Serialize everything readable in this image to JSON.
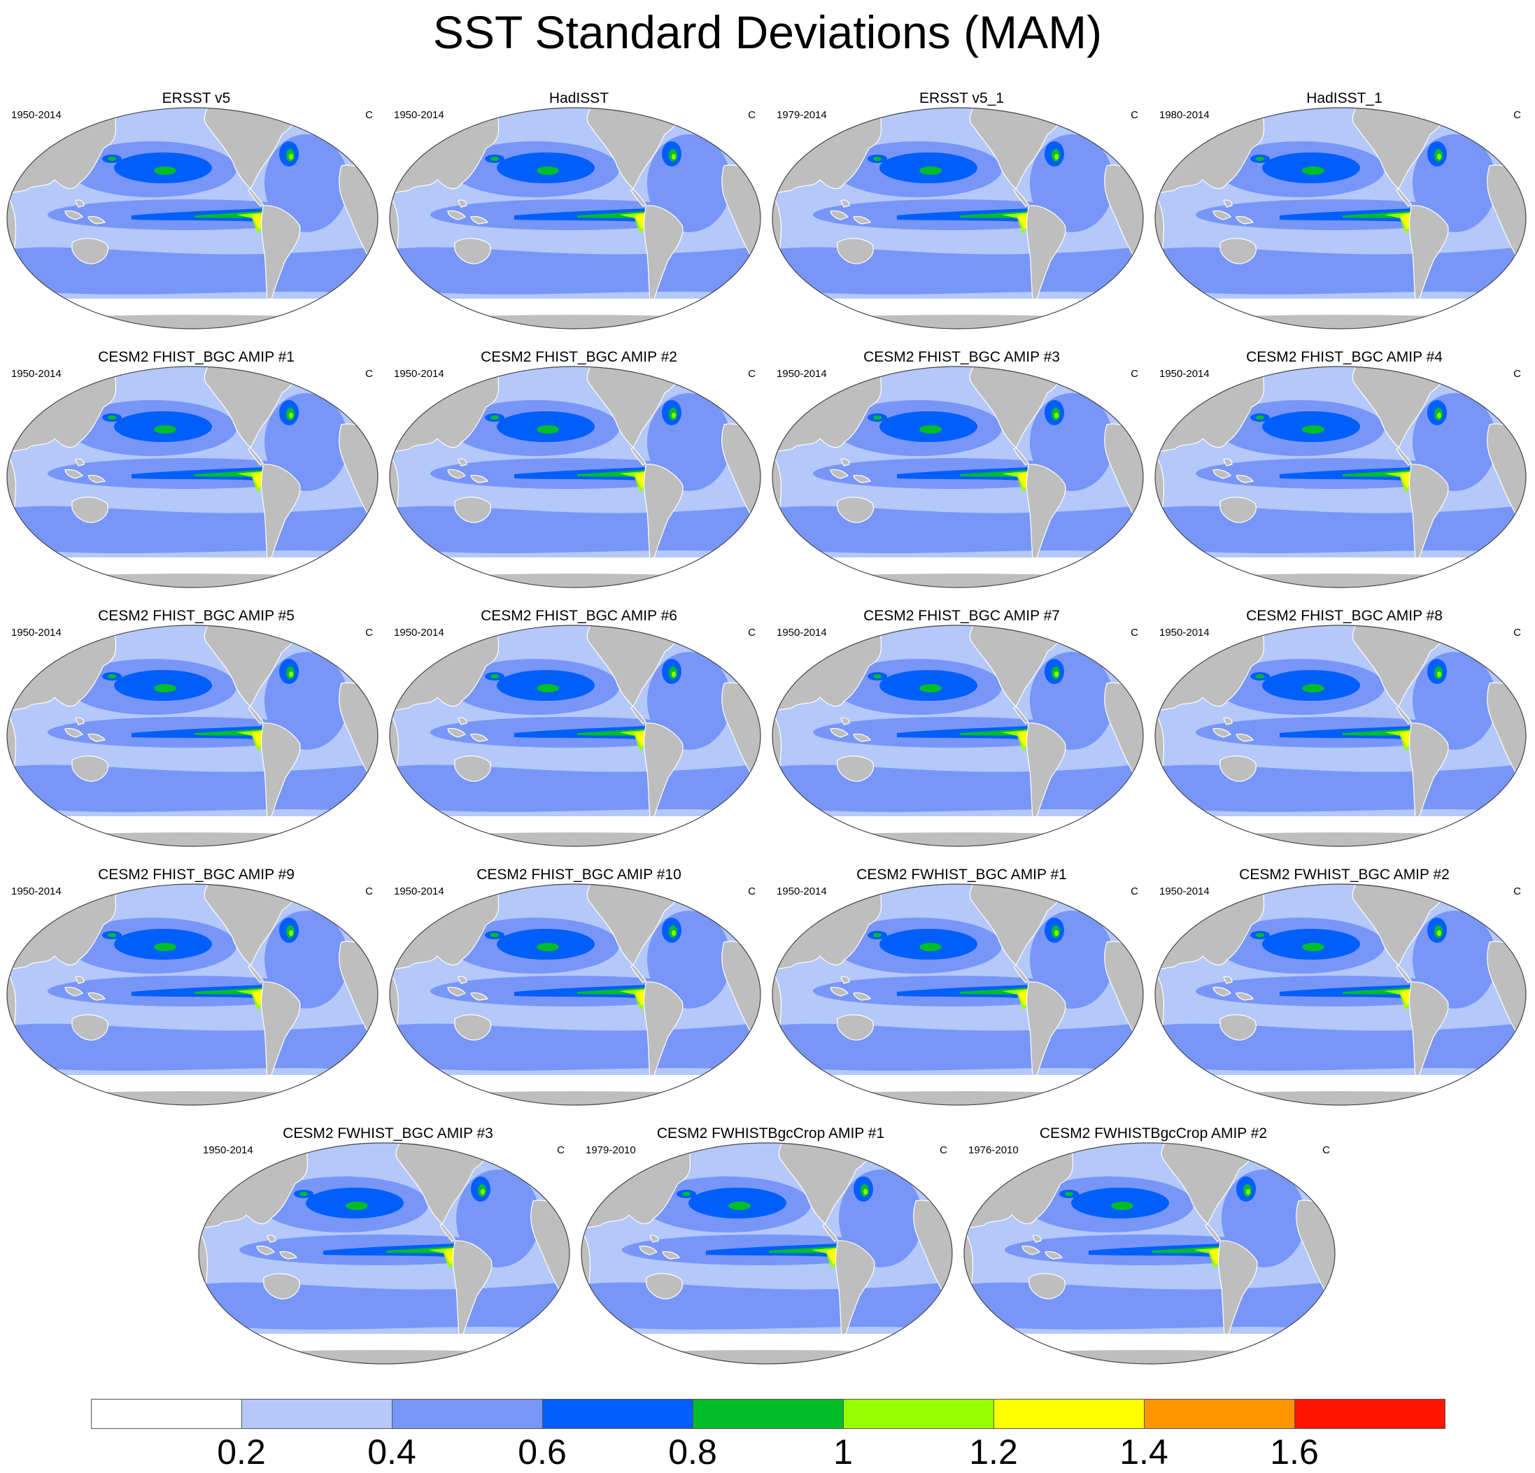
{
  "title": "SST Standard Deviations (MAM)",
  "units": "C",
  "colors": {
    "land": "#bebebe",
    "ocean_levels": [
      "#ffffff",
      "#b4c8fa",
      "#7896f8",
      "#005efa",
      "#00be28",
      "#96ff00",
      "#ffff00",
      "#ff9600",
      "#ff1400"
    ]
  },
  "panels": [
    {
      "title": "ERSST v5",
      "years": "1950-2014"
    },
    {
      "title": "HadISST",
      "years": "1950-2014"
    },
    {
      "title": "ERSST v5_1",
      "years": "1979-2014"
    },
    {
      "title": "HadISST_1",
      "years": "1980-2014"
    },
    {
      "title": "CESM2 FHIST_BGC AMIP #1",
      "years": "1950-2014"
    },
    {
      "title": "CESM2 FHIST_BGC AMIP #2",
      "years": "1950-2014"
    },
    {
      "title": "CESM2 FHIST_BGC AMIP #3",
      "years": "1950-2014"
    },
    {
      "title": "CESM2 FHIST_BGC AMIP #4",
      "years": "1950-2014"
    },
    {
      "title": "CESM2 FHIST_BGC AMIP #5",
      "years": "1950-2014"
    },
    {
      "title": "CESM2 FHIST_BGC AMIP #6",
      "years": "1950-2014"
    },
    {
      "title": "CESM2 FHIST_BGC AMIP #7",
      "years": "1950-2014"
    },
    {
      "title": "CESM2 FHIST_BGC AMIP #8",
      "years": "1950-2014"
    },
    {
      "title": "CESM2 FHIST_BGC AMIP #9",
      "years": "1950-2014"
    },
    {
      "title": "CESM2 FHIST_BGC AMIP #10",
      "years": "1950-2014"
    },
    {
      "title": "CESM2 FWHIST_BGC AMIP #1",
      "years": "1950-2014"
    },
    {
      "title": "CESM2 FWHIST_BGC AMIP #2",
      "years": "1950-2014"
    },
    {
      "title": "CESM2 FWHIST_BGC AMIP #3",
      "years": "1950-2014"
    },
    {
      "title": "CESM2 FWHISTBgcCrop AMIP #1",
      "years": "1979-2010"
    },
    {
      "title": "CESM2 FWHISTBgcCrop AMIP #2",
      "years": "1976-2010"
    }
  ],
  "colorbar": {
    "labels": [
      "0.2",
      "0.4",
      "0.6",
      "0.8",
      "1",
      "1.2",
      "1.4",
      "1.6"
    ]
  }
}
